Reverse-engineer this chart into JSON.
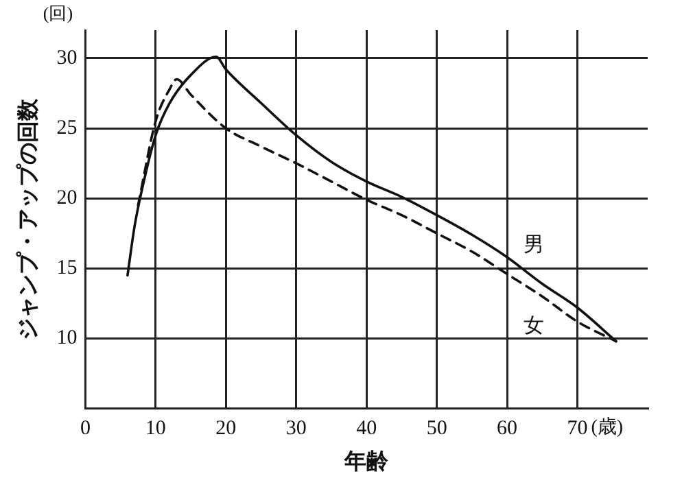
{
  "chart_data": {
    "type": "line",
    "xlabel": "年齢",
    "ylabel": "ジャンプ・アップの回数",
    "annotations": [
      "(回)",
      "(歳)"
    ],
    "xlim": [
      0,
      80
    ],
    "xticks": [
      0,
      10,
      20,
      30,
      40,
      50,
      60,
      70
    ],
    "ylim": [
      5,
      32
    ],
    "yticks": [
      10,
      15,
      20,
      25,
      30
    ],
    "grid": true,
    "legend": false,
    "marker": "none",
    "series": [
      {
        "name": "男",
        "color": "#111111",
        "line_style": "solid",
        "x": [
          6,
          7,
          8,
          10,
          12,
          15,
          18.6,
          20,
          25,
          30,
          35,
          40,
          45,
          50,
          55,
          60,
          65,
          70,
          75.5
        ],
        "values": [
          14.5,
          18,
          20.5,
          24.5,
          26.8,
          28.8,
          30.1,
          29.2,
          26.8,
          24.5,
          22.6,
          21.2,
          20.1,
          18.8,
          17.4,
          15.8,
          13.9,
          12.2,
          9.8
        ]
      },
      {
        "name": "女",
        "color": "#111111",
        "line_style": "dashed",
        "x": [
          7.5,
          10,
          12,
          13,
          15,
          20,
          25,
          30,
          35,
          40,
          45,
          50,
          55,
          60,
          65,
          70,
          75.5
        ],
        "values": [
          19.5,
          25.5,
          27.8,
          28.5,
          27.4,
          25,
          23.7,
          22.5,
          21.2,
          19.9,
          18.8,
          17.5,
          16.2,
          14.6,
          13,
          11.2,
          9.8
        ]
      }
    ]
  }
}
